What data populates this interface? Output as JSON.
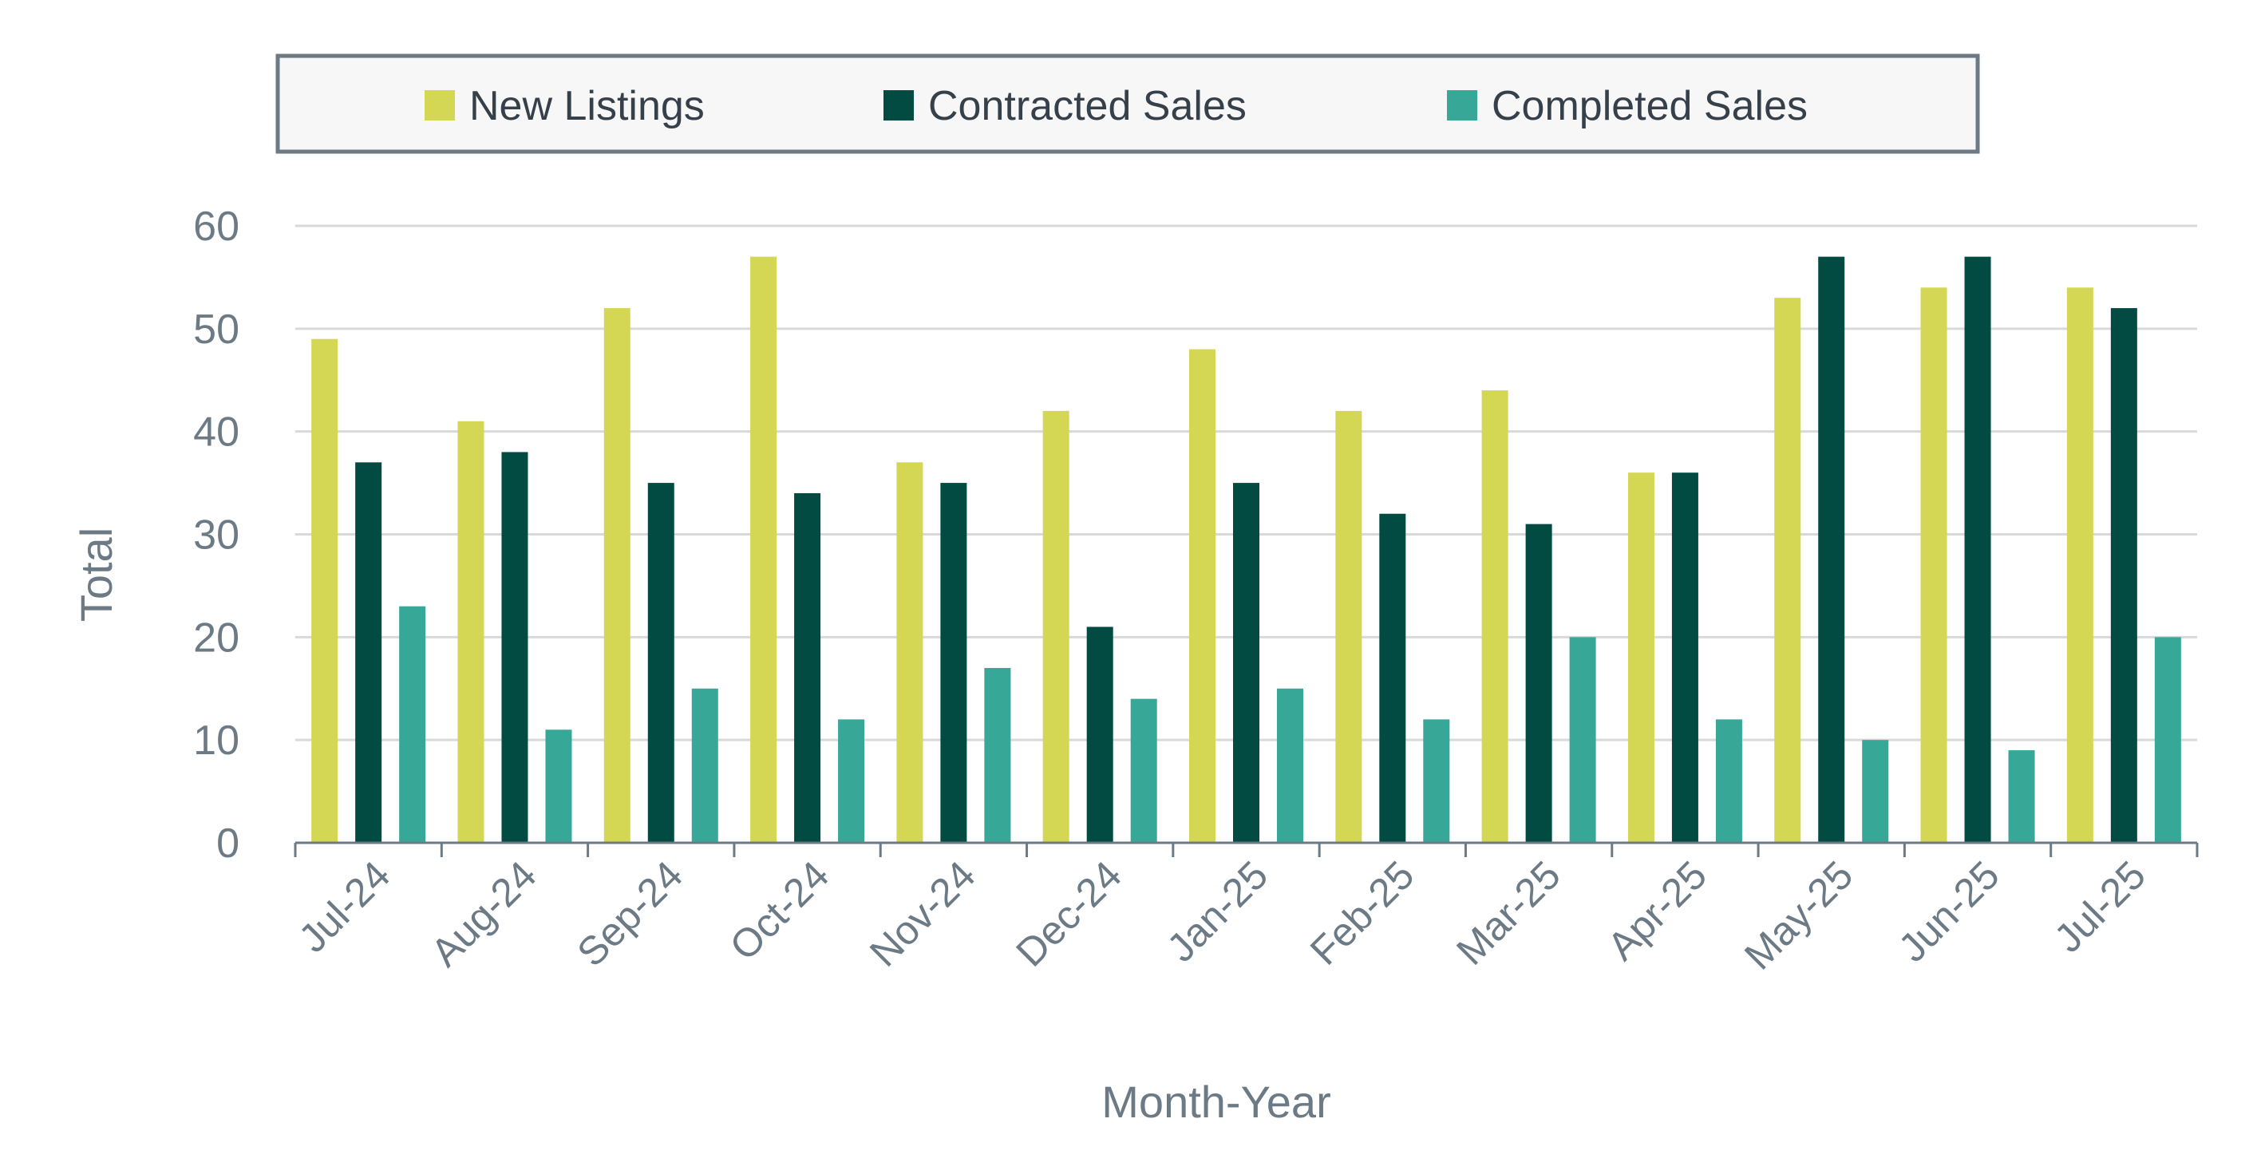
{
  "chart_data": {
    "type": "bar",
    "xlabel": "Month-Year",
    "ylabel": "Total",
    "ylim": [
      0,
      60
    ],
    "yticks": [
      0,
      10,
      20,
      30,
      40,
      50,
      60
    ],
    "grid": true,
    "legend_position": "top",
    "categories": [
      "Jul-24",
      "Aug-24",
      "Sep-24",
      "Oct-24",
      "Nov-24",
      "Dec-24",
      "Jan-25",
      "Feb-25",
      "Mar-25",
      "Apr-25",
      "May-25",
      "Jun-25",
      "Jul-25"
    ],
    "series": [
      {
        "name": "New Listings",
        "color": "#d4d754",
        "values": [
          49,
          41,
          52,
          57,
          37,
          42,
          48,
          42,
          44,
          36,
          53,
          54,
          54
        ]
      },
      {
        "name": "Contracted Sales",
        "color": "#024b43",
        "values": [
          37,
          38,
          35,
          34,
          35,
          21,
          35,
          32,
          31,
          36,
          57,
          57,
          52
        ]
      },
      {
        "name": "Completed Sales",
        "color": "#37a897",
        "values": [
          23,
          11,
          15,
          12,
          17,
          14,
          15,
          12,
          20,
          12,
          10,
          9,
          20
        ]
      }
    ],
    "colors": {
      "axis": "#6b7a85",
      "grid": "#d9d9d9",
      "legend_border": "#6b7a85",
      "legend_bg": "#f7f7f7"
    }
  }
}
